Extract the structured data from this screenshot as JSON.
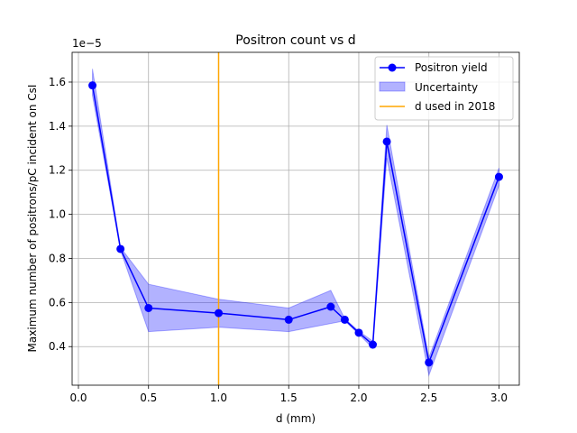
{
  "chart_data": {
    "type": "line",
    "title": "Positron count vs d",
    "xlabel": "d (mm)",
    "ylabel": "Maximum number of positrons/pC incident on CsI",
    "y_offset_label": "1e−5",
    "xlim": [
      -0.045,
      3.145
    ],
    "ylim": [
      0.225,
      1.735
    ],
    "x_ticks": [
      0.0,
      0.5,
      1.0,
      1.5,
      2.0,
      2.5,
      3.0
    ],
    "x_tick_labels": [
      "0.0",
      "0.5",
      "1.0",
      "1.5",
      "2.0",
      "2.5",
      "3.0"
    ],
    "y_ticks": [
      0.4,
      0.6,
      0.8,
      1.0,
      1.2,
      1.4,
      1.6
    ],
    "y_tick_labels": [
      "0.4",
      "0.6",
      "0.8",
      "1.0",
      "1.2",
      "1.4",
      "1.6"
    ],
    "grid": true,
    "legend_position": "top-right",
    "series": [
      {
        "name": "Positron yield",
        "kind": "line-marker",
        "color": "#0000ff",
        "x": [
          0.1,
          0.3,
          0.5,
          1.0,
          1.5,
          1.8,
          1.9,
          2.0,
          2.1,
          2.2,
          2.5,
          3.0
        ],
        "y": [
          1.585,
          0.843,
          0.575,
          0.552,
          0.522,
          0.581,
          0.522,
          0.463,
          0.409,
          1.33,
          0.328,
          1.17
        ]
      },
      {
        "name": "Uncertainty",
        "kind": "band",
        "color": "#0000ff",
        "opacity": 0.3,
        "x": [
          0.1,
          0.3,
          0.5,
          1.0,
          1.5,
          1.8,
          1.9,
          2.0,
          2.1,
          2.2,
          2.5,
          3.0
        ],
        "upper": [
          1.66,
          0.85,
          0.683,
          0.615,
          0.575,
          0.655,
          0.527,
          0.47,
          0.425,
          1.405,
          0.35,
          1.21
        ],
        "lower": [
          1.54,
          0.838,
          0.468,
          0.488,
          0.468,
          0.505,
          0.517,
          0.456,
          0.393,
          1.255,
          0.27,
          1.13
        ]
      },
      {
        "name": "d used in 2018",
        "kind": "vline",
        "color": "#ffa500",
        "x": 1.0
      }
    ]
  }
}
